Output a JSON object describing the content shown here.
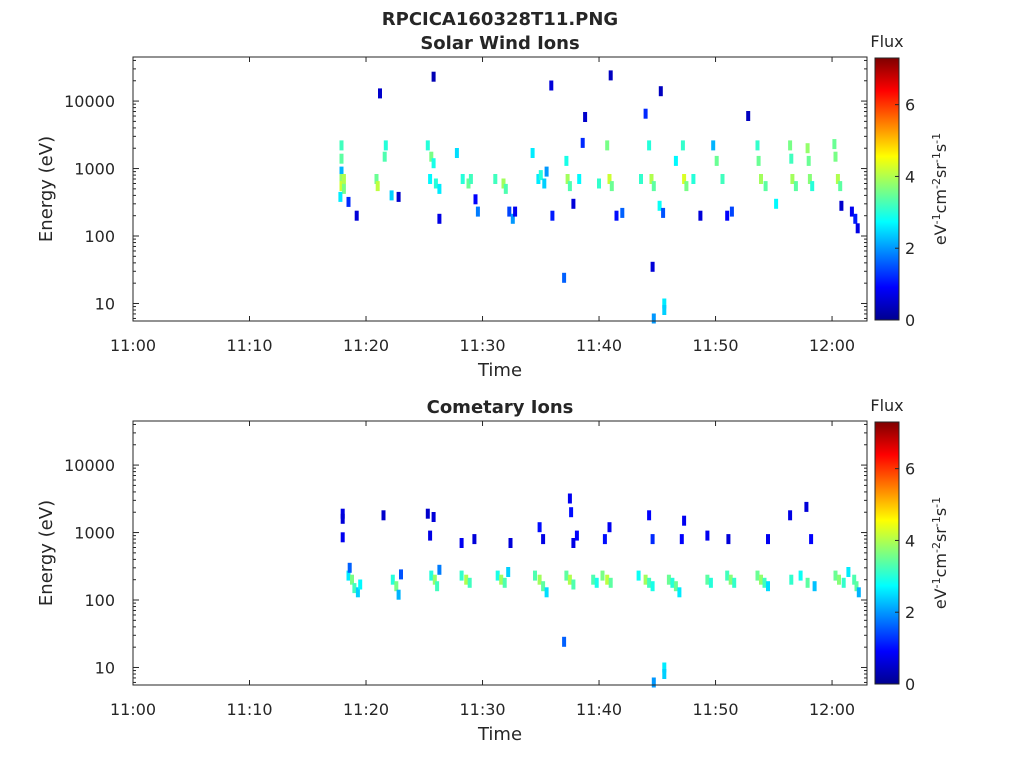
{
  "figure_title": "RPCICA160328T11.PNG",
  "colormap": [
    "#00008f",
    "#0000ff",
    "#007fff",
    "#00ffff",
    "#7fff7f",
    "#ffff00",
    "#ff7f00",
    "#ff0000",
    "#7f0000"
  ],
  "chart_data": [
    {
      "type": "heatmap",
      "title": "Solar Wind Ions",
      "xlabel": "Time",
      "ylabel": "Energy (eV)",
      "x_ticks": [
        "11:00",
        "11:10",
        "11:20",
        "11:30",
        "11:40",
        "11:50",
        "12:00"
      ],
      "x_range_min": [
        0,
        63
      ],
      "y_scale": "log",
      "y_ticks": [
        10,
        100,
        1000,
        10000
      ],
      "y_tick_labels": [
        "10",
        "100",
        "1000",
        "10000"
      ],
      "y_range": [
        5.5,
        45000
      ],
      "colorbar": {
        "label": "Flux",
        "unit": "eV-1cm-2sr-1s-1",
        "range": [
          0,
          7.3
        ],
        "ticks": [
          "0",
          "2",
          "4",
          "6"
        ]
      },
      "grid": false,
      "cells": [
        [
          17.9,
          2200,
          3.2
        ],
        [
          17.9,
          1400,
          3.4
        ],
        [
          17.9,
          900,
          2.2
        ],
        [
          17.9,
          700,
          3.8
        ],
        [
          17.9,
          550,
          4.2
        ],
        [
          18.1,
          700,
          4.0
        ],
        [
          18.1,
          500,
          3.6
        ],
        [
          17.8,
          380,
          2.6
        ],
        [
          18.5,
          320,
          1.2
        ],
        [
          19.2,
          200,
          0.6
        ],
        [
          20.9,
          700,
          3.5
        ],
        [
          21.0,
          550,
          4.1
        ],
        [
          21.6,
          1500,
          3.3
        ],
        [
          21.7,
          2200,
          3.0
        ],
        [
          22.2,
          400,
          2.4
        ],
        [
          22.8,
          380,
          0.5
        ],
        [
          25.3,
          2200,
          3.0
        ],
        [
          25.6,
          1500,
          3.6
        ],
        [
          25.8,
          1200,
          2.9
        ],
        [
          25.5,
          700,
          2.7
        ],
        [
          26.0,
          600,
          3.0
        ],
        [
          26.3,
          500,
          2.6
        ],
        [
          26.3,
          180,
          0.7
        ],
        [
          27.8,
          1700,
          2.5
        ],
        [
          28.3,
          700,
          3.0
        ],
        [
          28.8,
          600,
          3.5
        ],
        [
          29.0,
          700,
          3.2
        ],
        [
          29.4,
          350,
          0.9
        ],
        [
          29.6,
          230,
          1.8
        ],
        [
          31.1,
          700,
          3.2
        ],
        [
          31.8,
          600,
          3.9
        ],
        [
          32.0,
          500,
          3.3
        ],
        [
          32.3,
          230,
          1.4
        ],
        [
          32.6,
          180,
          2.0
        ],
        [
          32.8,
          230,
          0.8
        ],
        [
          34.3,
          1700,
          2.6
        ],
        [
          34.8,
          700,
          2.6
        ],
        [
          35.0,
          800,
          3.0
        ],
        [
          35.3,
          600,
          2.4
        ],
        [
          35.5,
          900,
          2.0
        ],
        [
          36.0,
          200,
          1.1
        ],
        [
          37.2,
          1300,
          2.9
        ],
        [
          37.3,
          700,
          3.9
        ],
        [
          37.5,
          550,
          3.3
        ],
        [
          37.8,
          300,
          0.6
        ],
        [
          38.3,
          700,
          2.7
        ],
        [
          38.6,
          2400,
          1.2
        ],
        [
          40.0,
          600,
          3.1
        ],
        [
          40.7,
          2200,
          3.6
        ],
        [
          40.9,
          700,
          4.2
        ],
        [
          41.1,
          550,
          3.5
        ],
        [
          41.5,
          200,
          1.0
        ],
        [
          42.0,
          220,
          1.6
        ],
        [
          43.6,
          700,
          3.1
        ],
        [
          44.3,
          2200,
          3.0
        ],
        [
          44.5,
          700,
          4.0
        ],
        [
          44.7,
          550,
          3.4
        ],
        [
          45.2,
          280,
          2.8
        ],
        [
          45.5,
          220,
          1.5
        ],
        [
          46.6,
          1300,
          2.7
        ],
        [
          47.2,
          2200,
          3.1
        ],
        [
          47.3,
          700,
          4.3
        ],
        [
          47.5,
          550,
          3.6
        ],
        [
          48.1,
          700,
          3.0
        ],
        [
          48.7,
          200,
          0.6
        ],
        [
          49.8,
          2200,
          2.2
        ],
        [
          50.1,
          1300,
          3.5
        ],
        [
          50.6,
          700,
          3.2
        ],
        [
          51.0,
          200,
          0.9
        ],
        [
          51.4,
          230,
          1.4
        ],
        [
          53.6,
          2200,
          3.1
        ],
        [
          53.7,
          1300,
          3.5
        ],
        [
          53.9,
          700,
          3.9
        ],
        [
          54.3,
          550,
          3.4
        ],
        [
          55.2,
          300,
          2.7
        ],
        [
          56.4,
          2200,
          3.6
        ],
        [
          56.5,
          1400,
          3.2
        ],
        [
          56.6,
          700,
          3.9
        ],
        [
          56.9,
          550,
          3.4
        ],
        [
          57.9,
          2000,
          3.8
        ],
        [
          58.0,
          1300,
          3.5
        ],
        [
          58.1,
          700,
          3.7
        ],
        [
          58.3,
          550,
          3.0
        ],
        [
          60.2,
          2300,
          3.5
        ],
        [
          60.3,
          1500,
          3.6
        ],
        [
          60.5,
          700,
          4.0
        ],
        [
          60.7,
          550,
          3.4
        ],
        [
          60.8,
          280,
          0.5
        ],
        [
          61.7,
          230,
          0.8
        ],
        [
          62.0,
          180,
          1.1
        ],
        [
          62.2,
          130,
          0.7
        ],
        [
          25.8,
          23000,
          0.3
        ],
        [
          21.2,
          13000,
          0.5
        ],
        [
          35.9,
          17000,
          0.6
        ],
        [
          41.0,
          24000,
          0.4
        ],
        [
          45.3,
          14000,
          0.4
        ],
        [
          44.0,
          6500,
          1.2
        ],
        [
          38.8,
          5800,
          0.5
        ],
        [
          52.8,
          6000,
          0.4
        ],
        [
          37.0,
          24,
          1.6
        ],
        [
          44.6,
          35,
          0.6
        ],
        [
          45.6,
          10,
          2.6
        ],
        [
          45.6,
          8,
          2.4
        ],
        [
          44.7,
          6,
          2.0
        ]
      ]
    },
    {
      "type": "heatmap",
      "title": "Cometary Ions",
      "xlabel": "Time",
      "ylabel": "Energy (eV)",
      "x_ticks": [
        "11:00",
        "11:10",
        "11:20",
        "11:30",
        "11:40",
        "11:50",
        "12:00"
      ],
      "x_range_min": [
        0,
        63
      ],
      "y_scale": "log",
      "y_ticks": [
        10,
        100,
        1000,
        10000
      ],
      "y_tick_labels": [
        "10",
        "100",
        "1000",
        "10000"
      ],
      "y_range": [
        5.5,
        45000
      ],
      "colorbar": {
        "label": "Flux",
        "unit": "eV-1cm-2sr-1s-1",
        "range": [
          0,
          7.3
        ],
        "ticks": [
          "0",
          "2",
          "4",
          "6"
        ]
      },
      "grid": false,
      "cells": [
        [
          18.0,
          1900,
          0.7
        ],
        [
          18.0,
          1600,
          0.6
        ],
        [
          18.0,
          850,
          0.8
        ],
        [
          18.5,
          230,
          2.6
        ],
        [
          18.8,
          200,
          3.6
        ],
        [
          19.0,
          150,
          3.2
        ],
        [
          19.3,
          130,
          2.4
        ],
        [
          18.6,
          300,
          1.6
        ],
        [
          19.5,
          170,
          2.7
        ],
        [
          21.5,
          1800,
          0.5
        ],
        [
          22.3,
          200,
          3.0
        ],
        [
          22.6,
          160,
          3.6
        ],
        [
          22.8,
          120,
          2.2
        ],
        [
          23.0,
          240,
          1.5
        ],
        [
          25.3,
          1900,
          0.5
        ],
        [
          25.8,
          1700,
          0.6
        ],
        [
          25.5,
          900,
          0.7
        ],
        [
          25.6,
          230,
          3.0
        ],
        [
          25.9,
          200,
          3.8
        ],
        [
          26.1,
          160,
          3.2
        ],
        [
          26.3,
          280,
          1.8
        ],
        [
          28.2,
          230,
          3.1
        ],
        [
          28.6,
          200,
          4.0
        ],
        [
          28.9,
          180,
          3.2
        ],
        [
          28.2,
          700,
          0.8
        ],
        [
          29.3,
          800,
          0.6
        ],
        [
          31.3,
          230,
          2.9
        ],
        [
          31.6,
          200,
          3.9
        ],
        [
          31.9,
          180,
          3.3
        ],
        [
          32.2,
          260,
          2.4
        ],
        [
          32.4,
          700,
          0.6
        ],
        [
          34.5,
          230,
          3.3
        ],
        [
          34.9,
          200,
          3.9
        ],
        [
          35.2,
          160,
          3.4
        ],
        [
          35.5,
          130,
          2.5
        ],
        [
          35.2,
          800,
          0.7
        ],
        [
          34.9,
          1200,
          1.0
        ],
        [
          37.2,
          230,
          3.4
        ],
        [
          37.5,
          200,
          4.0
        ],
        [
          37.8,
          170,
          3.3
        ],
        [
          37.8,
          700,
          0.7
        ],
        [
          38.1,
          900,
          0.9
        ],
        [
          37.6,
          2000,
          1.0
        ],
        [
          37.5,
          3200,
          0.8
        ],
        [
          39.5,
          200,
          3.3
        ],
        [
          39.8,
          180,
          2.9
        ],
        [
          40.3,
          230,
          3.6
        ],
        [
          40.7,
          200,
          4.1
        ],
        [
          41.0,
          180,
          3.4
        ],
        [
          40.5,
          800,
          1.0
        ],
        [
          40.9,
          1200,
          0.8
        ],
        [
          43.4,
          230,
          2.8
        ],
        [
          44.0,
          200,
          3.9
        ],
        [
          44.3,
          180,
          3.2
        ],
        [
          44.6,
          160,
          2.9
        ],
        [
          44.6,
          800,
          1.2
        ],
        [
          44.3,
          1800,
          0.9
        ],
        [
          46.0,
          200,
          3.5
        ],
        [
          46.3,
          180,
          3.0
        ],
        [
          46.6,
          160,
          3.5
        ],
        [
          46.9,
          130,
          2.6
        ],
        [
          47.3,
          1500,
          0.8
        ],
        [
          47.1,
          800,
          0.9
        ],
        [
          49.3,
          200,
          3.4
        ],
        [
          49.6,
          180,
          3.0
        ],
        [
          49.3,
          900,
          0.8
        ],
        [
          51.0,
          230,
          3.2
        ],
        [
          51.3,
          200,
          3.7
        ],
        [
          51.6,
          180,
          3.1
        ],
        [
          51.1,
          800,
          0.6
        ],
        [
          53.6,
          230,
          3.5
        ],
        [
          53.9,
          200,
          3.8
        ],
        [
          54.2,
          180,
          3.2
        ],
        [
          54.5,
          160,
          2.5
        ],
        [
          54.5,
          800,
          0.8
        ],
        [
          56.5,
          200,
          3.1
        ],
        [
          57.3,
          230,
          2.8
        ],
        [
          57.9,
          180,
          3.4
        ],
        [
          58.5,
          160,
          2.3
        ],
        [
          56.4,
          1800,
          0.7
        ],
        [
          57.8,
          2400,
          0.6
        ],
        [
          58.2,
          800,
          0.9
        ],
        [
          60.3,
          230,
          3.5
        ],
        [
          60.6,
          200,
          3.7
        ],
        [
          61.0,
          180,
          3.1
        ],
        [
          61.4,
          260,
          2.6
        ],
        [
          61.9,
          200,
          3.3
        ],
        [
          62.1,
          160,
          3.4
        ],
        [
          62.3,
          130,
          2.2
        ],
        [
          37.0,
          24,
          1.6
        ],
        [
          45.6,
          10,
          2.6
        ],
        [
          45.6,
          8,
          2.4
        ],
        [
          44.7,
          6,
          2.0
        ]
      ]
    }
  ]
}
